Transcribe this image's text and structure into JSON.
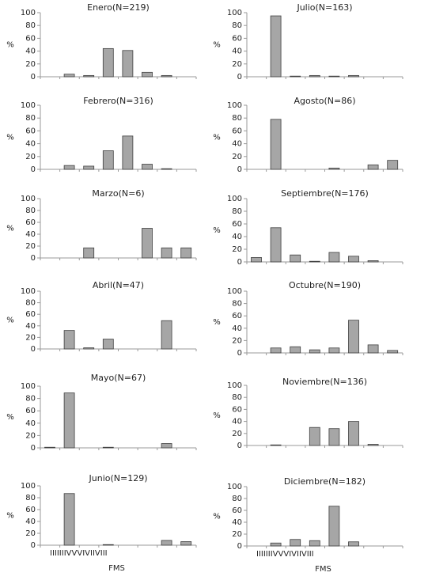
{
  "chart_data": [
    {
      "type": "bar",
      "title": "Enero(N=219)",
      "ylabel": "%",
      "values": [
        0,
        4,
        2,
        44,
        41,
        7,
        2,
        0
      ],
      "color": "#a6a6a6",
      "ylim": [
        0,
        100
      ],
      "yticks": [
        0,
        20,
        40,
        60,
        80,
        100
      ]
    },
    {
      "type": "bar",
      "title": "Febrero(N=316)",
      "ylabel": "%",
      "values": [
        0,
        6,
        5,
        29,
        52,
        8,
        1,
        0
      ],
      "color": "#a6a6a6",
      "ylim": [
        0,
        100
      ],
      "yticks": [
        0,
        20,
        40,
        60,
        80,
        100
      ]
    },
    {
      "type": "bar",
      "title": "Marzo(N=6)",
      "ylabel": "%",
      "values": [
        0,
        0,
        17,
        0,
        0,
        50,
        17,
        17
      ],
      "color": "#a6a6a6",
      "ylim": [
        0,
        100
      ],
      "yticks": [
        0,
        20,
        40,
        60,
        80,
        100
      ]
    },
    {
      "type": "bar",
      "title": "Abril(N=47)",
      "ylabel": "%",
      "values": [
        0,
        32,
        2,
        17,
        0,
        0,
        49,
        0
      ],
      "color": "#a6a6a6",
      "ylim": [
        0,
        100
      ],
      "yticks": [
        0,
        20,
        40,
        60,
        80,
        100
      ]
    },
    {
      "type": "bar",
      "title": "Mayo(N=67)",
      "ylabel": "%",
      "values": [
        1,
        89,
        0,
        1,
        0,
        0,
        7,
        0
      ],
      "color": "#a6a6a6",
      "ylim": [
        0,
        100
      ],
      "yticks": [
        0,
        20,
        40,
        60,
        80,
        100
      ]
    },
    {
      "type": "bar",
      "title": "Junio(N=129)",
      "ylabel": "%",
      "xlabel": "FMS",
      "categories": [
        "I",
        "II",
        "III",
        "IV",
        "V",
        "VI",
        "VII",
        "VIII"
      ],
      "values": [
        0,
        87,
        0,
        1,
        0,
        0,
        8,
        6
      ],
      "color": "#a6a6a6",
      "ylim": [
        0,
        100
      ],
      "yticks": [
        0,
        20,
        40,
        60,
        80,
        100
      ]
    },
    {
      "type": "bar",
      "title": "Julio(N=163)",
      "ylabel": "%",
      "values": [
        0,
        95,
        1,
        2,
        1,
        2,
        0,
        0
      ],
      "color": "#a6a6a6",
      "ylim": [
        0,
        100
      ],
      "yticks": [
        0,
        20,
        40,
        60,
        80,
        100
      ]
    },
    {
      "type": "bar",
      "title": "Agosto(N=86)",
      "ylabel": "%",
      "values": [
        0,
        78,
        0,
        0,
        2,
        0,
        7,
        14
      ],
      "color": "#a6a6a6",
      "ylim": [
        0,
        100
      ],
      "yticks": [
        0,
        20,
        40,
        60,
        80,
        100
      ]
    },
    {
      "type": "bar",
      "title": "Septiembre(N=176)",
      "ylabel": "%",
      "values": [
        7,
        54,
        11,
        1,
        15,
        9,
        2,
        0
      ],
      "color": "#a6a6a6",
      "ylim": [
        0,
        100
      ],
      "yticks": [
        0,
        20,
        40,
        60,
        80,
        100
      ]
    },
    {
      "type": "bar",
      "title": "Octubre(N=190)",
      "ylabel": "%",
      "values": [
        0,
        8,
        10,
        5,
        8,
        53,
        13,
        4
      ],
      "color": "#a6a6a6",
      "ylim": [
        0,
        100
      ],
      "yticks": [
        0,
        20,
        40,
        60,
        80,
        100
      ]
    },
    {
      "type": "bar",
      "title": "Noviembre(N=136)",
      "ylabel": "%",
      "values": [
        0,
        1,
        0,
        30,
        28,
        40,
        2,
        0
      ],
      "color": "#a6a6a6",
      "ylim": [
        0,
        100
      ],
      "yticks": [
        0,
        20,
        40,
        60,
        80,
        100
      ]
    },
    {
      "type": "bar",
      "title": "Diciembre(N=182)",
      "ylabel": "%",
      "xlabel": "FMS",
      "categories": [
        "I",
        "II",
        "III",
        "IV",
        "V",
        "VI",
        "VII",
        "VIII"
      ],
      "values": [
        0,
        5,
        11,
        9,
        67,
        7,
        0,
        0
      ],
      "color": "#a6a6a6",
      "ylim": [
        0,
        100
      ],
      "yticks": [
        0,
        20,
        40,
        60,
        80,
        100
      ]
    }
  ]
}
